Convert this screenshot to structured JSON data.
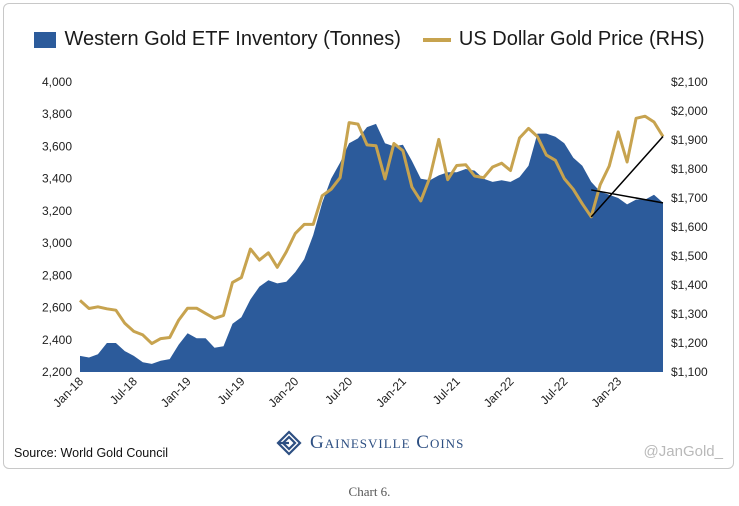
{
  "legend": {
    "inventory_label": "Western Gold ETF Inventory (Tonnes)",
    "price_label": "US Dollar Gold Price (RHS)"
  },
  "source_text": "Source: World Gold Council",
  "watermark": "@JanGold_",
  "brand_name": "Gainesville Coins",
  "caption": "Chart 6.",
  "colors": {
    "inventory": "#2c5b9b",
    "price": "#c7a34f",
    "trendline": "#000000"
  },
  "chart_data": {
    "type": "area",
    "x": [
      "Jan-18",
      "Feb-18",
      "Mar-18",
      "Apr-18",
      "May-18",
      "Jun-18",
      "Jul-18",
      "Aug-18",
      "Sep-18",
      "Oct-18",
      "Nov-18",
      "Dec-18",
      "Jan-19",
      "Feb-19",
      "Mar-19",
      "Apr-19",
      "May-19",
      "Jun-19",
      "Jul-19",
      "Aug-19",
      "Sep-19",
      "Oct-19",
      "Nov-19",
      "Dec-19",
      "Jan-20",
      "Feb-20",
      "Mar-20",
      "Apr-20",
      "May-20",
      "Jun-20",
      "Jul-20",
      "Aug-20",
      "Sep-20",
      "Oct-20",
      "Nov-20",
      "Dec-20",
      "Jan-21",
      "Feb-21",
      "Mar-21",
      "Apr-21",
      "May-21",
      "Jun-21",
      "Jul-21",
      "Aug-21",
      "Sep-21",
      "Oct-21",
      "Nov-21",
      "Dec-21",
      "Jan-22",
      "Feb-22",
      "Mar-22",
      "Apr-22",
      "May-22",
      "Jun-22",
      "Jul-22",
      "Aug-22",
      "Sep-22",
      "Oct-22",
      "Nov-22",
      "Dec-22",
      "Jan-23",
      "Feb-23",
      "Mar-23",
      "Apr-23",
      "May-23",
      "Jun-23"
    ],
    "x_tick_labels": [
      "Jan-18",
      "Jul-18",
      "Jan-19",
      "Jul-19",
      "Jan-20",
      "Jul-20",
      "Jan-21",
      "Jul-21",
      "Jan-22",
      "Jul-22",
      "Jan-23"
    ],
    "series": [
      {
        "name": "Western Gold ETF Inventory (Tonnes)",
        "type": "area",
        "axis": "left",
        "values": [
          2300,
          2290,
          2310,
          2380,
          2380,
          2330,
          2300,
          2260,
          2250,
          2270,
          2280,
          2370,
          2440,
          2410,
          2410,
          2350,
          2360,
          2500,
          2540,
          2650,
          2730,
          2770,
          2750,
          2760,
          2820,
          2900,
          3050,
          3250,
          3400,
          3500,
          3620,
          3650,
          3720,
          3740,
          3620,
          3600,
          3610,
          3510,
          3400,
          3390,
          3420,
          3440,
          3440,
          3460,
          3450,
          3400,
          3380,
          3390,
          3380,
          3410,
          3480,
          3680,
          3680,
          3660,
          3620,
          3530,
          3480,
          3380,
          3320,
          3300,
          3280,
          3240,
          3270,
          3270,
          3300,
          3250
        ]
      },
      {
        "name": "US Dollar Gold Price (RHS)",
        "type": "line",
        "axis": "right",
        "values": [
          1347,
          1319,
          1325,
          1318,
          1313,
          1268,
          1240,
          1228,
          1198,
          1215,
          1219,
          1279,
          1320,
          1320,
          1302,
          1285,
          1295,
          1409,
          1426,
          1524,
          1486,
          1511,
          1461,
          1514,
          1578,
          1609,
          1609,
          1708,
          1730,
          1770,
          1960,
          1955,
          1883,
          1880,
          1766,
          1888,
          1863,
          1738,
          1690,
          1770,
          1902,
          1763,
          1812,
          1815,
          1776,
          1770,
          1807,
          1820,
          1795,
          1907,
          1940,
          1912,
          1848,
          1830,
          1767,
          1730,
          1680,
          1635,
          1746,
          1810,
          1928,
          1824,
          1975,
          1982,
          1962,
          1912
        ]
      }
    ],
    "trendlines": [
      {
        "axis": "left",
        "from": {
          "x": "Oct-22",
          "y": 3330
        },
        "to": {
          "x": "Jun-23",
          "y": 3250
        }
      },
      {
        "axis": "right",
        "from": {
          "x": "Oct-22",
          "y": 1635
        },
        "to": {
          "x": "Jun-23",
          "y": 1912
        }
      }
    ],
    "ylim_left": [
      2200,
      4000
    ],
    "ylim_right": [
      1100,
      2100
    ],
    "y_ticks_left": [
      "2,200",
      "2,400",
      "2,600",
      "2,800",
      "3,000",
      "3,200",
      "3,400",
      "3,600",
      "3,800",
      "4,000"
    ],
    "y_ticks_right": [
      "$1,100",
      "$1,200",
      "$1,300",
      "$1,400",
      "$1,500",
      "$1,600",
      "$1,700",
      "$1,800",
      "$1,900",
      "$2,000",
      "$2,100"
    ],
    "legend_position": "top",
    "grid": false
  }
}
